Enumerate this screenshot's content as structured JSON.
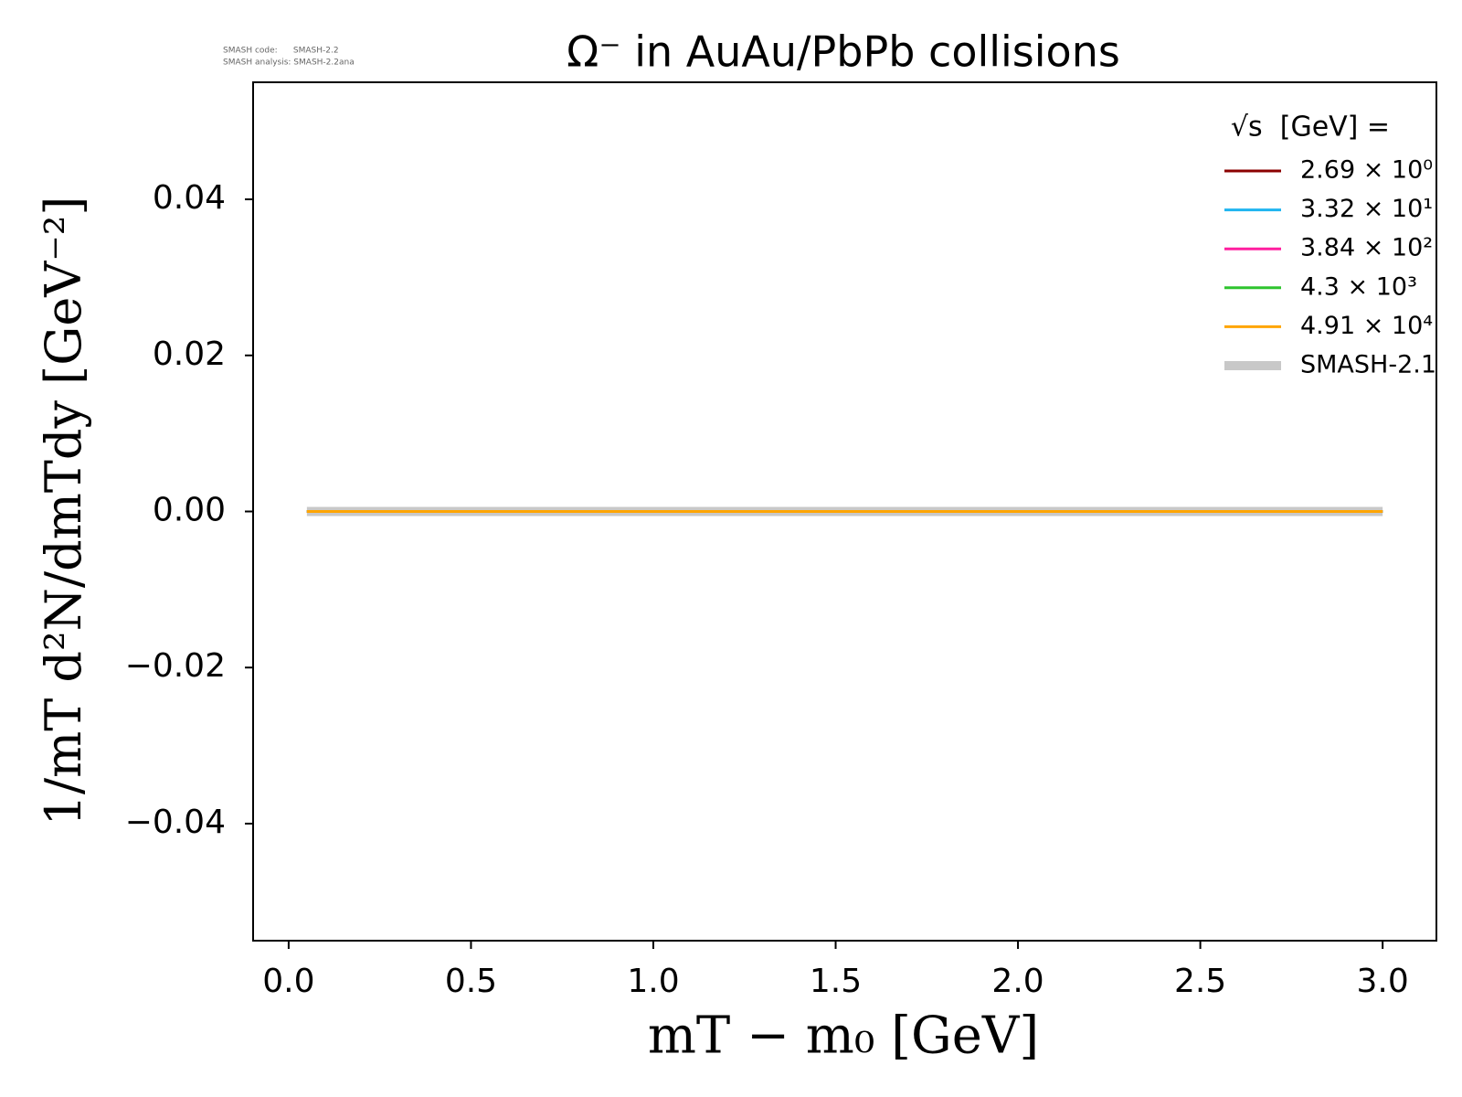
{
  "chart_data": {
    "type": "line",
    "title": "Ω⁻ in AuAu/PbPb collisions",
    "annotations": [
      "SMASH code:      SMASH-2.2",
      "SMASH analysis: SMASH-2.2ana"
    ],
    "xlabel": "mT − m₀ [GeV]",
    "ylabel": "1/mT d²N/dmTdy [GeV⁻²]",
    "x": [
      0.05,
      3.0
    ],
    "series": [
      {
        "name": "2.69 × 10⁰",
        "color": "#8b0000",
        "linewidth": 3,
        "values": [
          0,
          0
        ]
      },
      {
        "name": "3.32 × 10¹",
        "color": "#1fb4f0",
        "linewidth": 3,
        "values": [
          0,
          0
        ]
      },
      {
        "name": "3.84 × 10²",
        "color": "#ff1f9f",
        "linewidth": 3,
        "values": [
          0,
          0
        ]
      },
      {
        "name": "4.3 × 10³",
        "color": "#2ec42e",
        "linewidth": 3,
        "values": [
          0,
          0
        ]
      },
      {
        "name": "4.91 × 10⁴",
        "color": "#ffa500",
        "linewidth": 3,
        "values": [
          0,
          0
        ]
      },
      {
        "name": "SMASH-2.1",
        "color": "#c8c8c8",
        "linewidth": 10,
        "values": [
          0,
          0
        ]
      }
    ],
    "legend_title": "√s  [GeV] =",
    "legend": "upper right",
    "xlim": [
      -0.0975,
      3.1475
    ],
    "xticks": [
      {
        "value": 0,
        "label": "0.0"
      },
      0.5,
      {
        "value": 1,
        "label": "1.0"
      },
      1.5,
      {
        "value": 2,
        "label": "2.0"
      },
      2.5,
      {
        "value": 3,
        "label": "3.0"
      }
    ],
    "ylim": [
      -0.055,
      0.055
    ],
    "yticks": [
      {
        "value": -0.04,
        "label": "−0.04"
      },
      {
        "value": -0.02,
        "label": "−0.02"
      },
      {
        "value": 0,
        "label": "0.00"
      },
      0.02,
      0.04
    ],
    "grid": false
  }
}
